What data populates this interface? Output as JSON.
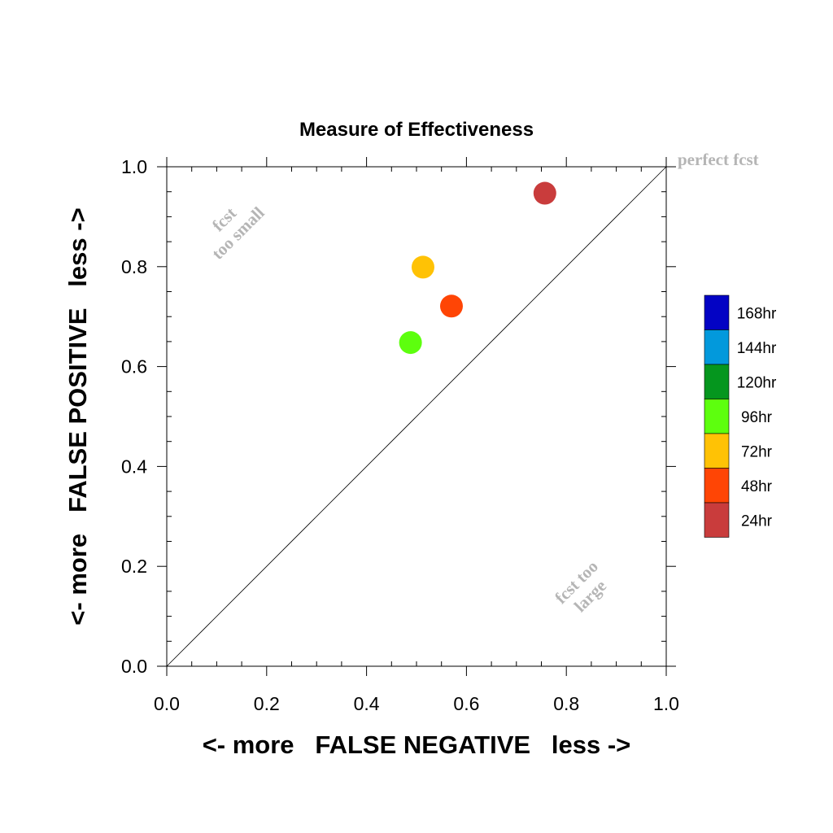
{
  "chart_data": {
    "type": "scatter",
    "title": "Measure of Effectiveness",
    "xlabel": "<- more   FALSE NEGATIVE   less ->",
    "ylabel": "<- more   FALSE POSITIVE   less ->",
    "xlim": [
      0,
      1
    ],
    "ylim": [
      0,
      1
    ],
    "x_ticks": [
      "0.0",
      "0.2",
      "0.4",
      "0.6",
      "0.8",
      "1.0"
    ],
    "y_ticks": [
      "0.0",
      "0.2",
      "0.4",
      "0.6",
      "0.8",
      "1.0"
    ],
    "grid": false,
    "diagonal_reference_line": true,
    "legend_placement": "right",
    "annotations": {
      "top_right": "perfect fcst",
      "upper_left_line1": "fcst",
      "upper_left_line2": "too small",
      "lower_right_line1": "fcst too",
      "lower_right_line2": "large"
    },
    "legend": [
      {
        "label": "168hr",
        "color": "#0303c4"
      },
      {
        "label": "144hr",
        "color": "#0299dc"
      },
      {
        "label": "120hr",
        "color": "#05961e"
      },
      {
        "label": "96hr",
        "color": "#5dff0e"
      },
      {
        "label": "72hr",
        "color": "#ffc205"
      },
      {
        "label": "48hr",
        "color": "#ff4505"
      },
      {
        "label": "24hr",
        "color": "#c93c3c"
      }
    ],
    "points": [
      {
        "series": "24hr",
        "x": 0.757,
        "y": 0.947,
        "color": "#c93c3c"
      },
      {
        "series": "72hr",
        "x": 0.513,
        "y": 0.799,
        "color": "#ffc205"
      },
      {
        "series": "48hr",
        "x": 0.57,
        "y": 0.721,
        "color": "#ff4505"
      },
      {
        "series": "96hr",
        "x": 0.488,
        "y": 0.648,
        "color": "#5dff0e"
      }
    ]
  }
}
